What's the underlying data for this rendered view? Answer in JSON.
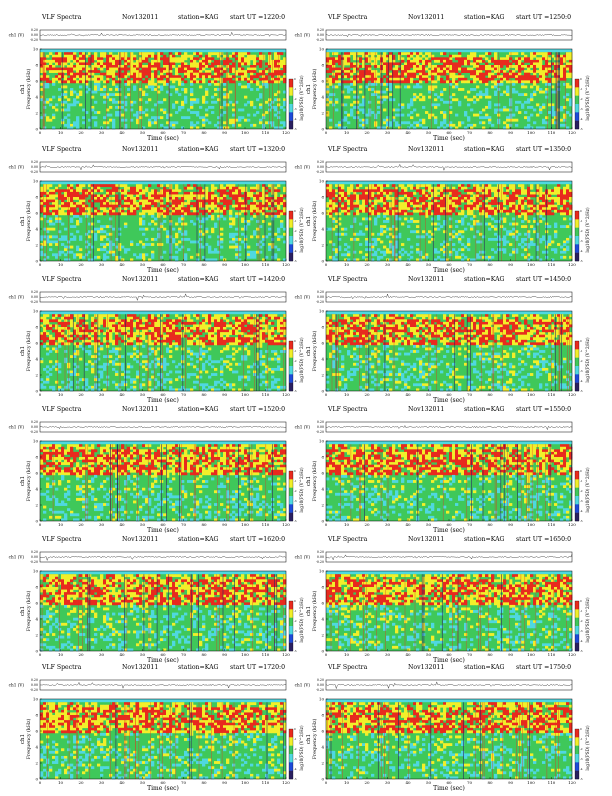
{
  "figure": {
    "header_title": "VLF Spectra",
    "date": "Nov132011",
    "station": "station=KAG",
    "start_prefix": "start  UT  =",
    "xlabel": "Time  (sec)",
    "ylabel_channel": "ch1",
    "ylabel_freq": "Frequency  (kHz)",
    "waveform_ylabel": "ch1 (V)",
    "colorbar_label": "log10(PSD) (V^2/Hz)",
    "colorbar_ticks": [
      "0",
      "-1",
      "-2",
      "-3",
      "-4",
      "-5"
    ],
    "colors": {
      "background_cyan": "#4fd8e0",
      "low_green": "#3fc85a",
      "mid_yellow": "#f2ef2a",
      "high_red": "#e82a1e",
      "dark": "#2a2060",
      "blue": "#1e4ad8"
    }
  },
  "chart_data": [
    {
      "type": "heatmap",
      "title": "VLF Spectra",
      "start_ut": "1220:0",
      "x": {
        "min": 0,
        "max": 120,
        "ticks": [
          0,
          10,
          20,
          30,
          40,
          50,
          60,
          70,
          80,
          90,
          100,
          110,
          120
        ]
      },
      "y": {
        "min": 0,
        "max": 10,
        "ticks": [
          0,
          2,
          4,
          6,
          8,
          10
        ]
      },
      "waveform": {
        "ylim": [
          -0.2,
          0.2
        ],
        "ticks": [
          "0.20",
          "0.00",
          "-0.20"
        ]
      }
    },
    {
      "type": "heatmap",
      "title": "VLF Spectra",
      "start_ut": "1250:0",
      "x": {
        "min": 0,
        "max": 120,
        "ticks": [
          0,
          10,
          20,
          30,
          40,
          50,
          60,
          70,
          80,
          90,
          100,
          110,
          120
        ]
      },
      "y": {
        "min": 0,
        "max": 10,
        "ticks": [
          0,
          2,
          4,
          6,
          8,
          10
        ]
      },
      "waveform": {
        "ylim": [
          -0.2,
          0.2
        ],
        "ticks": [
          "0.20",
          "0.00",
          "-0.20"
        ]
      }
    },
    {
      "type": "heatmap",
      "title": "VLF Spectra",
      "start_ut": "1320:0",
      "x": {
        "min": 0,
        "max": 120,
        "ticks": [
          0,
          10,
          20,
          30,
          40,
          50,
          60,
          70,
          80,
          90,
          100,
          110,
          120
        ]
      },
      "y": {
        "min": 0,
        "max": 10,
        "ticks": [
          0,
          2,
          4,
          6,
          8,
          10
        ]
      },
      "waveform": {
        "ylim": [
          -0.2,
          0.2
        ],
        "ticks": [
          "0.20",
          "0.00",
          "-0.20"
        ]
      }
    },
    {
      "type": "heatmap",
      "title": "VLF Spectra",
      "start_ut": "1350:0",
      "x": {
        "min": 0,
        "max": 120,
        "ticks": [
          0,
          10,
          20,
          30,
          40,
          50,
          60,
          70,
          80,
          90,
          100,
          110,
          120
        ]
      },
      "y": {
        "min": 0,
        "max": 10,
        "ticks": [
          0,
          2,
          4,
          6,
          8,
          10
        ]
      },
      "waveform": {
        "ylim": [
          -0.2,
          0.2
        ],
        "ticks": [
          "0.20",
          "0.00",
          "-0.20"
        ]
      }
    },
    {
      "type": "heatmap",
      "title": "VLF Spectra",
      "start_ut": "1420:0",
      "x": {
        "min": 0,
        "max": 120,
        "ticks": [
          0,
          10,
          20,
          30,
          40,
          50,
          60,
          70,
          80,
          90,
          100,
          110,
          120
        ]
      },
      "y": {
        "min": 0,
        "max": 10,
        "ticks": [
          0,
          2,
          4,
          6,
          8,
          10
        ]
      },
      "waveform": {
        "ylim": [
          -0.2,
          0.2
        ],
        "ticks": [
          "0.20",
          "0.00",
          "-0.20"
        ]
      }
    },
    {
      "type": "heatmap",
      "title": "VLF Spectra",
      "start_ut": "1450:0",
      "x": {
        "min": 0,
        "max": 120,
        "ticks": [
          0,
          10,
          20,
          30,
          40,
          50,
          60,
          70,
          80,
          90,
          100,
          110,
          120
        ]
      },
      "y": {
        "min": 0,
        "max": 10,
        "ticks": [
          0,
          2,
          4,
          6,
          8,
          10
        ]
      },
      "waveform": {
        "ylim": [
          -0.2,
          0.2
        ],
        "ticks": [
          "0.20",
          "0.00",
          "-0.20"
        ]
      }
    },
    {
      "type": "heatmap",
      "title": "VLF Spectra",
      "start_ut": "1520:0",
      "x": {
        "min": 0,
        "max": 120,
        "ticks": [
          0,
          10,
          20,
          30,
          40,
          50,
          60,
          70,
          80,
          90,
          100,
          110,
          120
        ]
      },
      "y": {
        "min": 0,
        "max": 10,
        "ticks": [
          0,
          2,
          4,
          6,
          8,
          10
        ]
      },
      "waveform": {
        "ylim": [
          -0.2,
          0.2
        ],
        "ticks": [
          "0.20",
          "0.00",
          "-0.20"
        ]
      }
    },
    {
      "type": "heatmap",
      "title": "VLF Spectra",
      "start_ut": "1550:0",
      "x": {
        "min": 0,
        "max": 120,
        "ticks": [
          0,
          10,
          20,
          30,
          40,
          50,
          60,
          70,
          80,
          90,
          100,
          110,
          120
        ]
      },
      "y": {
        "min": 0,
        "max": 10,
        "ticks": [
          0,
          2,
          4,
          6,
          8,
          10
        ]
      },
      "waveform": {
        "ylim": [
          -0.2,
          0.2
        ],
        "ticks": [
          "0.20",
          "0.00",
          "-0.20"
        ]
      }
    },
    {
      "type": "heatmap",
      "title": "VLF Spectra",
      "start_ut": "1620:0",
      "x": {
        "min": 0,
        "max": 120,
        "ticks": [
          0,
          10,
          20,
          30,
          40,
          50,
          60,
          70,
          80,
          90,
          100,
          110,
          120
        ]
      },
      "y": {
        "min": 0,
        "max": 10,
        "ticks": [
          0,
          2,
          4,
          6,
          8,
          10
        ]
      },
      "waveform": {
        "ylim": [
          -0.2,
          0.2
        ],
        "ticks": [
          "0.20",
          "0.00",
          "-0.20"
        ]
      }
    },
    {
      "type": "heatmap",
      "title": "VLF Spectra",
      "start_ut": "1650:0",
      "x": {
        "min": 0,
        "max": 120,
        "ticks": [
          0,
          10,
          20,
          30,
          40,
          50,
          60,
          70,
          80,
          90,
          100,
          110,
          120
        ]
      },
      "y": {
        "min": 0,
        "max": 10,
        "ticks": [
          0,
          2,
          4,
          6,
          8,
          10
        ]
      },
      "waveform": {
        "ylim": [
          -0.2,
          0.2
        ],
        "ticks": [
          "0.20",
          "0.00",
          "-0.20"
        ]
      }
    },
    {
      "type": "heatmap",
      "title": "VLF Spectra",
      "start_ut": "1720:0",
      "x": {
        "min": 0,
        "max": 120,
        "ticks": [
          0,
          10,
          20,
          30,
          40,
          50,
          60,
          70,
          80,
          90,
          100,
          110,
          120
        ]
      },
      "y": {
        "min": 0,
        "max": 10,
        "ticks": [
          0,
          2,
          4,
          6,
          8,
          10
        ]
      },
      "waveform": {
        "ylim": [
          -0.2,
          0.2
        ],
        "ticks": [
          "0.20",
          "0.00",
          "-0.20"
        ]
      }
    },
    {
      "type": "heatmap",
      "title": "VLF Spectra",
      "start_ut": "1750:0",
      "x": {
        "min": 0,
        "max": 120,
        "ticks": [
          0,
          10,
          20,
          30,
          40,
          50,
          60,
          70,
          80,
          90,
          100,
          110,
          120
        ]
      },
      "y": {
        "min": 0,
        "max": 10,
        "ticks": [
          0,
          2,
          4,
          6,
          8,
          10
        ]
      },
      "waveform": {
        "ylim": [
          -0.2,
          0.2
        ],
        "ticks": [
          "0.20",
          "0.00",
          "-0.20"
        ]
      }
    }
  ]
}
